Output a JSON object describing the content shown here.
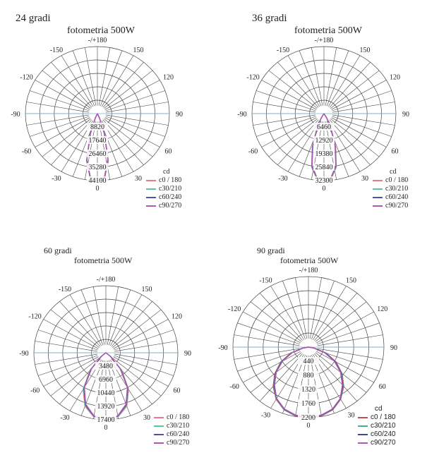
{
  "chart_data": [
    {
      "type": "polar-line",
      "title": "24 gradi",
      "subtitle": "fotometria  500W",
      "unit": "cd",
      "angle_labels": [
        "-/+180",
        "150",
        "120",
        "90",
        "60",
        "30",
        "0",
        "-30",
        "-60",
        "-90",
        "-120",
        "-150"
      ],
      "radial_ticks": [
        "8820",
        "17640",
        "26460",
        "35280",
        "44100"
      ],
      "rmax": 44100,
      "series": [
        {
          "name": "c0 / 180",
          "color": "#e8788a",
          "angles": [
            -30,
            -24,
            -18,
            -12,
            -6,
            0,
            6,
            12,
            18,
            24,
            30
          ],
          "values": [
            0,
            3200,
            14800,
            32000,
            42600,
            44100,
            42600,
            32000,
            14800,
            3200,
            0
          ]
        },
        {
          "name": "c30/210",
          "color": "#5cc69a",
          "angles": [
            -30,
            -24,
            -18,
            -12,
            -6,
            0,
            6,
            12,
            18,
            24,
            30
          ],
          "values": [
            0,
            3100,
            14400,
            31600,
            42300,
            44100,
            42300,
            31600,
            14400,
            3100,
            0
          ]
        },
        {
          "name": "c60/240",
          "color": "#4a55a8",
          "angles": [
            -30,
            -24,
            -18,
            -12,
            -6,
            0,
            6,
            12,
            18,
            24,
            30
          ],
          "values": [
            0,
            3000,
            14000,
            31200,
            42000,
            44100,
            42000,
            31200,
            14000,
            3000,
            0
          ]
        },
        {
          "name": "c90/270",
          "color": "#b454b4",
          "angles": [
            -30,
            -24,
            -18,
            -12,
            -6,
            0,
            6,
            12,
            18,
            24,
            30
          ],
          "values": [
            0,
            2900,
            13600,
            30800,
            41700,
            44100,
            41700,
            30800,
            13600,
            2900,
            0
          ]
        }
      ]
    },
    {
      "type": "polar-line",
      "title": "36 gradi",
      "subtitle": "fotometria  500W",
      "unit": "cd",
      "angle_labels": [
        "-/+180",
        "150",
        "120",
        "90",
        "60",
        "30",
        "0",
        "-30",
        "-60",
        "-90",
        "-120",
        "-150"
      ],
      "radial_ticks": [
        "6460",
        "12920",
        "19380",
        "25840",
        "32300"
      ],
      "rmax": 32300,
      "series": [
        {
          "name": "c0 / 180",
          "color": "#e8788a",
          "angles": [
            -36,
            -30,
            -24,
            -18,
            -12,
            -6,
            0,
            6,
            12,
            18,
            24,
            30,
            36
          ],
          "values": [
            0,
            2600,
            7800,
            17000,
            26500,
            31400,
            32300,
            31400,
            26500,
            17000,
            7800,
            2600,
            0
          ]
        },
        {
          "name": "c30/210",
          "color": "#5cc69a",
          "angles": [
            -36,
            -30,
            -24,
            -18,
            -12,
            -6,
            0,
            6,
            12,
            18,
            24,
            30,
            36
          ],
          "values": [
            0,
            2500,
            7600,
            16700,
            26200,
            31200,
            32300,
            31200,
            26200,
            16700,
            7600,
            2500,
            0
          ]
        },
        {
          "name": "c60/240",
          "color": "#4a55a8",
          "angles": [
            -36,
            -30,
            -24,
            -18,
            -12,
            -6,
            0,
            6,
            12,
            18,
            24,
            30,
            36
          ],
          "values": [
            0,
            2400,
            7400,
            16400,
            25900,
            31000,
            32300,
            31000,
            25900,
            16400,
            7400,
            2400,
            0
          ]
        },
        {
          "name": "c90/270",
          "color": "#b454b4",
          "angles": [
            -36,
            -30,
            -24,
            -18,
            -12,
            -6,
            0,
            6,
            12,
            18,
            24,
            30,
            36
          ],
          "values": [
            0,
            2300,
            7200,
            16100,
            25600,
            30800,
            32300,
            30800,
            25600,
            16100,
            7200,
            2300,
            0
          ]
        }
      ]
    },
    {
      "type": "polar-line",
      "title": "60 gradi",
      "subtitle": "fotometria  500W",
      "unit": "cd",
      "angle_labels": [
        "-/+180",
        "150",
        "120",
        "90",
        "60",
        "30",
        "0",
        "-30",
        "-60",
        "-90",
        "-120",
        "-150"
      ],
      "radial_ticks": [
        "3480",
        "6960",
        "10440",
        "13920",
        "17400"
      ],
      "rmax": 17400,
      "series": [
        {
          "name": "c0 / 180",
          "color": "#e8788a",
          "angles": [
            -60,
            -50,
            -40,
            -30,
            -20,
            -10,
            0,
            10,
            20,
            30,
            40,
            50,
            60
          ],
          "values": [
            0,
            1600,
            6000,
            11000,
            14800,
            16900,
            17400,
            16900,
            14800,
            11000,
            6000,
            1600,
            0
          ]
        },
        {
          "name": "c30/210",
          "color": "#5cc69a",
          "angles": [
            -60,
            -50,
            -40,
            -30,
            -20,
            -10,
            0,
            10,
            20,
            30,
            40,
            50,
            60
          ],
          "values": [
            0,
            1500,
            5800,
            10800,
            14600,
            16800,
            17400,
            16800,
            14600,
            10800,
            5800,
            1500,
            0
          ]
        },
        {
          "name": "c60/240",
          "color": "#4a55a8",
          "angles": [
            -60,
            -50,
            -40,
            -30,
            -20,
            -10,
            0,
            10,
            20,
            30,
            40,
            50,
            60
          ],
          "values": [
            0,
            1400,
            5600,
            10600,
            14400,
            16700,
            17400,
            16700,
            14400,
            10600,
            5600,
            1400,
            0
          ]
        },
        {
          "name": "c90/270",
          "color": "#b454b4",
          "angles": [
            -60,
            -50,
            -40,
            -30,
            -20,
            -10,
            0,
            10,
            20,
            30,
            40,
            50,
            60
          ],
          "values": [
            0,
            1300,
            5400,
            10400,
            14200,
            16600,
            17400,
            16600,
            14200,
            10400,
            5400,
            1300,
            0
          ]
        }
      ]
    },
    {
      "type": "polar-line",
      "title": "90 gradi",
      "subtitle": "fotometria  500W",
      "unit": "cd",
      "angle_labels": [
        "-/+180",
        "150",
        "120",
        "90",
        "60",
        "30",
        "0",
        "-30",
        "-60",
        "-90",
        "-120",
        "-150"
      ],
      "radial_ticks": [
        "440",
        "880",
        "1320",
        "1760",
        "2200"
      ],
      "rmax": 2200,
      "series": [
        {
          "name": "c0 / 180",
          "color": "#c0504d",
          "angles": [
            -90,
            -80,
            -70,
            -60,
            -50,
            -40,
            -30,
            -20,
            -10,
            0,
            10,
            20,
            30,
            40,
            50,
            60,
            70,
            80,
            90
          ],
          "values": [
            0,
            180,
            560,
            930,
            1280,
            1600,
            1880,
            2080,
            2180,
            2200,
            2180,
            2080,
            1880,
            1600,
            1280,
            930,
            560,
            180,
            0
          ]
        },
        {
          "name": "c30/210",
          "color": "#4bac8c",
          "angles": [
            -90,
            -80,
            -70,
            -60,
            -50,
            -40,
            -30,
            -20,
            -10,
            0,
            10,
            20,
            30,
            40,
            50,
            60,
            70,
            80,
            90
          ],
          "values": [
            0,
            170,
            540,
            910,
            1260,
            1580,
            1870,
            2070,
            2170,
            2200,
            2170,
            2070,
            1870,
            1580,
            1260,
            910,
            540,
            170,
            0
          ]
        },
        {
          "name": "c60/240",
          "color": "#3f4c9c",
          "angles": [
            -90,
            -80,
            -70,
            -60,
            -50,
            -40,
            -30,
            -20,
            -10,
            0,
            10,
            20,
            30,
            40,
            50,
            60,
            70,
            80,
            90
          ],
          "values": [
            0,
            160,
            520,
            890,
            1240,
            1560,
            1860,
            2060,
            2160,
            2200,
            2160,
            2060,
            1860,
            1560,
            1240,
            890,
            520,
            160,
            0
          ]
        },
        {
          "name": "c90/270",
          "color": "#b454b4",
          "angles": [
            -90,
            -80,
            -70,
            -60,
            -50,
            -40,
            -30,
            -20,
            -10,
            0,
            10,
            20,
            30,
            40,
            50,
            60,
            70,
            80,
            90
          ],
          "values": [
            0,
            150,
            500,
            870,
            1220,
            1540,
            1850,
            2050,
            2150,
            2200,
            2150,
            2050,
            1850,
            1540,
            1220,
            870,
            500,
            150,
            0
          ]
        }
      ]
    }
  ]
}
